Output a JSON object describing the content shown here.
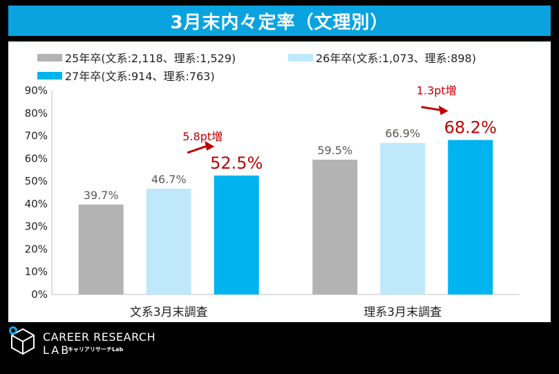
{
  "title": "3月末内々定率（文理別）",
  "colors": {
    "title_bg": "#0aa3e0",
    "annotation": "#c00000",
    "arrow": "#c00000"
  },
  "chart_data": {
    "type": "bar",
    "categories": [
      "文系3月末調査",
      "理系3月末調査"
    ],
    "series": [
      {
        "name": "25年卒(文系:2,118、理系:1,529)",
        "color": "#b3b3b3",
        "values": [
          39.7,
          59.5
        ],
        "labels": [
          "39.7%",
          "59.5%"
        ]
      },
      {
        "name": "26年卒(文系:1,073、理系:898)",
        "color": "#bfe9fb",
        "values": [
          46.7,
          66.9
        ],
        "labels": [
          "46.7%",
          "66.9%"
        ]
      },
      {
        "name": "27年卒(文系:914、理系:763)",
        "color": "#00b4f0",
        "values": [
          52.5,
          68.2
        ],
        "labels": [
          "52.5%",
          "68.2%"
        ]
      }
    ],
    "ylim": [
      0,
      90
    ],
    "yticks": [
      "0%",
      "10%",
      "20%",
      "30%",
      "40%",
      "50%",
      "60%",
      "70%",
      "80%",
      "90%"
    ],
    "grid": false,
    "legend": "top-left",
    "annotations": [
      "5.8pt増",
      "1.3pt増"
    ]
  },
  "footer": {
    "logo_icon": "cube-logo-icon",
    "brand": "CAREER RESEARCH",
    "brand_sub": "LAB",
    "brand_kana": "キャリアリサーチLab"
  }
}
